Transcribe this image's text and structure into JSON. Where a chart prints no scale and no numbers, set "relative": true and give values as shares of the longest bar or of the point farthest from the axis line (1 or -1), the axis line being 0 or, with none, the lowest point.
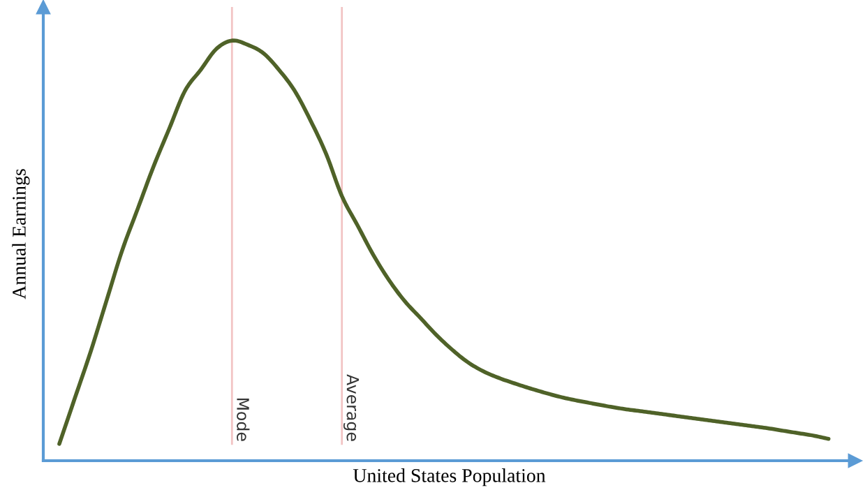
{
  "chart_data": {
    "type": "line",
    "relative": true,
    "xlabel": "United States Population",
    "ylabel": "Annual Earnings",
    "categories": [
      null,
      null,
      null,
      null,
      null,
      null,
      null,
      null,
      null,
      null,
      null,
      null,
      null,
      null,
      null,
      null,
      null,
      null,
      null,
      null,
      null,
      null,
      null,
      null,
      null,
      null,
      null,
      null,
      null,
      null,
      null,
      null,
      null,
      null,
      null,
      null,
      null,
      null,
      null,
      null,
      null,
      null,
      null,
      null,
      null,
      null,
      null,
      null,
      null,
      null
    ],
    "series": [
      {
        "color": "#4f6228",
        "values": [
          0.04,
          0.15,
          0.26,
          0.38,
          0.5,
          0.6,
          0.7,
          0.79,
          0.88,
          0.93,
          0.98,
          1.0,
          0.99,
          0.97,
          0.93,
          0.88,
          0.81,
          0.73,
          0.63,
          0.56,
          0.49,
          0.43,
          0.38,
          0.34,
          0.3,
          0.265,
          0.235,
          0.213,
          0.197,
          0.184,
          0.172,
          0.161,
          0.151,
          0.143,
          0.136,
          0.129,
          0.123,
          0.118,
          0.113,
          0.108,
          0.103,
          0.098,
          0.093,
          0.088,
          0.083,
          0.078,
          0.072,
          0.066,
          0.06,
          0.052
        ]
      }
    ],
    "annotations": [
      "Mode",
      "Average"
    ],
    "line_style": "solid"
  }
}
